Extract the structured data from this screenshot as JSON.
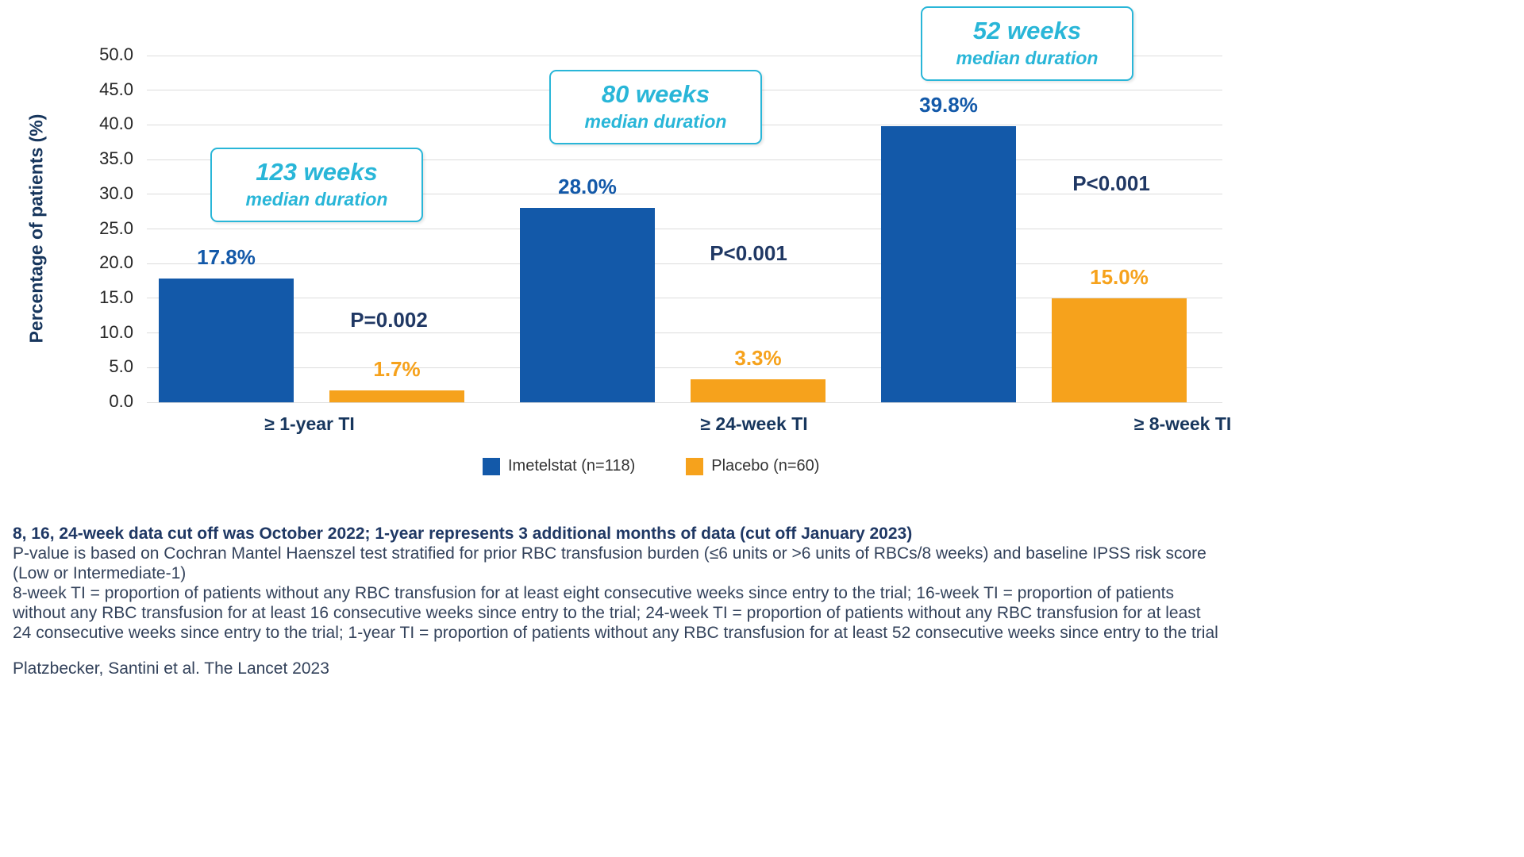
{
  "colors": {
    "imetelstat_blue": "#1359A9",
    "placebo_orange": "#F6A21C",
    "callout_cyan": "#29B6D8",
    "navy_text": "#17365D"
  },
  "chart_data": {
    "type": "bar",
    "title": "",
    "xlabel": "",
    "ylabel": "Percentage of patients (%)",
    "ylim": [
      0,
      50
    ],
    "ytick_step": 5,
    "grid": "horizontal",
    "legend_position": "bottom",
    "categories": [
      "≥ 1-year TI",
      "≥ 24-week TI",
      "≥ 8-week TI"
    ],
    "series": [
      {
        "name": "Imetelstat (n=118)",
        "color": "#1359A9",
        "values": [
          17.8,
          28.0,
          39.8
        ],
        "labels": [
          "17.8%",
          "28.0%",
          "39.8%"
        ]
      },
      {
        "name": "Placebo (n=60)",
        "color": "#F6A21C",
        "values": [
          1.7,
          3.3,
          15.0
        ],
        "labels": [
          "1.7%",
          "3.3%",
          "15.0%"
        ]
      }
    ],
    "p_values": [
      "P=0.002",
      "P<0.001",
      "P<0.001"
    ],
    "callouts": [
      {
        "line1": "123 weeks",
        "line2": "median duration"
      },
      {
        "line1": "80 weeks",
        "line2": "median duration"
      },
      {
        "line1": "52 weeks",
        "line2": "median duration"
      }
    ]
  },
  "footnotes": {
    "bold_line": "8, 16, 24-week data cut off was October 2022; 1-year represents 3 additional months of data (cut off January 2023)",
    "pvalue_note": "P-value is based on Cochran Mantel Haenszel test stratified for prior RBC transfusion burden (≤6 units or >6 units of RBCs/8 weeks) and baseline IPSS risk score (Low or Intermediate-1)",
    "ti_definitions": "8-week TI = proportion of patients without any RBC transfusion for at least eight consecutive weeks since entry to the trial; 16-week TI = proportion of patients without any RBC transfusion for at least 16 consecutive weeks since entry to the trial; 24-week TI = proportion of patients without any RBC transfusion for at least 24 consecutive weeks since entry to the trial; 1-year TI = proportion of patients without any RBC transfusion for at least 52 consecutive weeks since entry to the trial",
    "citation": "Platzbecker, Santini et al. The Lancet 2023"
  }
}
